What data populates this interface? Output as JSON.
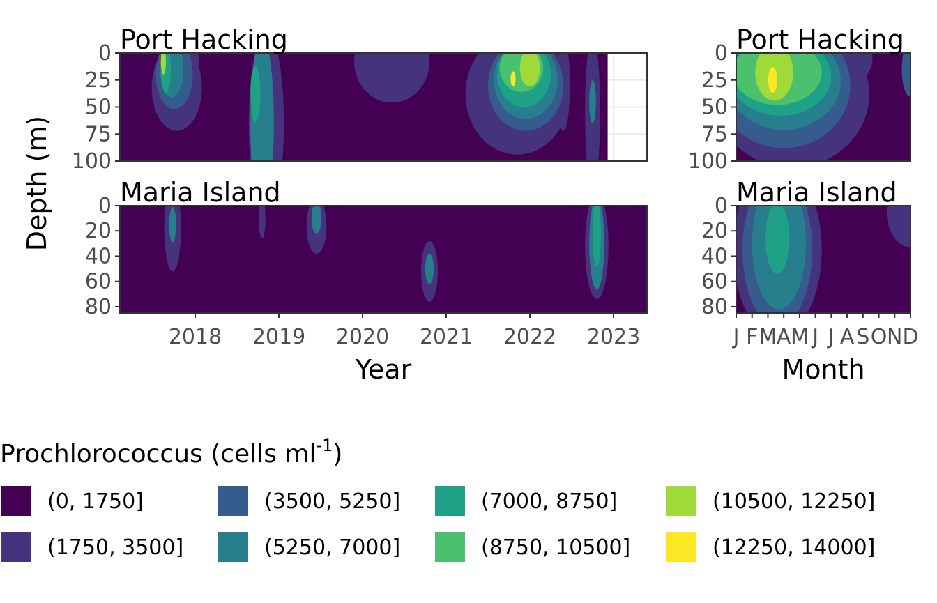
{
  "chart_data": {
    "type": "heatmap",
    "description_label": "Prochlorococcus depth contour panels",
    "ylabel": "Depth (m)",
    "legend": {
      "title": "Prochlorococcus (cells ml",
      "title_sup": "-1",
      "title_end": ")",
      "placement": "bottom",
      "bins": [
        {
          "label": "(0, 1750]",
          "color": "#440154"
        },
        {
          "label": "(1750, 3500]",
          "color": "#46337E"
        },
        {
          "label": "(3500, 5250]",
          "color": "#365C8D"
        },
        {
          "label": "(5250, 7000]",
          "color": "#277F8E"
        },
        {
          "label": "(7000, 8750]",
          "color": "#1FA187"
        },
        {
          "label": "(8750, 10500]",
          "color": "#4AC16D"
        },
        {
          "label": "(10500, 12250]",
          "color": "#9FDA3A"
        },
        {
          "label": "(12250, 14000]",
          "color": "#FDE725"
        }
      ]
    },
    "panels": [
      {
        "id": "year-port-hacking",
        "facet": "Port Hacking",
        "xlabel": "",
        "x_type": "year",
        "xlim": [
          2017.1,
          2023.4
        ],
        "ylim": [
          0,
          100
        ],
        "y_ticks": [
          "0",
          "25",
          "50",
          "75",
          "100"
        ],
        "y_tick_values": [
          0,
          25,
          50,
          75,
          100
        ],
        "x_ticks": [],
        "data_end": 2022.93,
        "blobs": [
          {
            "x": 2017.78,
            "y": 32,
            "rx": 0.3,
            "ry": 40,
            "bin": 1
          },
          {
            "x": 2017.75,
            "y": 20,
            "rx": 0.22,
            "ry": 32,
            "bin": 2
          },
          {
            "x": 2017.72,
            "y": 15,
            "rx": 0.14,
            "ry": 26,
            "bin": 3
          },
          {
            "x": 2017.65,
            "y": 15,
            "rx": 0.06,
            "ry": 22,
            "bin": 4
          },
          {
            "x": 2017.62,
            "y": 8,
            "rx": 0.03,
            "ry": 12,
            "bin": 6
          },
          {
            "x": 2018.0,
            "y": 22,
            "rx": 0.05,
            "ry": 32,
            "bin": 1
          },
          {
            "x": 2018.85,
            "y": 65,
            "rx": 0.21,
            "ry": 85,
            "bin": 1
          },
          {
            "x": 2018.8,
            "y": 65,
            "rx": 0.14,
            "ry": 80,
            "bin": 3
          },
          {
            "x": 2018.72,
            "y": 38,
            "rx": 0.06,
            "ry": 26,
            "bin": 4
          },
          {
            "x": 2020.35,
            "y": 8,
            "rx": 0.45,
            "ry": 38,
            "bin": 1
          },
          {
            "x": 2021.85,
            "y": 38,
            "rx": 0.62,
            "ry": 56,
            "bin": 1
          },
          {
            "x": 2021.95,
            "y": 30,
            "rx": 0.45,
            "ry": 42,
            "bin": 2
          },
          {
            "x": 2021.95,
            "y": 25,
            "rx": 0.38,
            "ry": 36,
            "bin": 3
          },
          {
            "x": 2021.93,
            "y": 20,
            "rx": 0.32,
            "ry": 30,
            "bin": 4
          },
          {
            "x": 2021.9,
            "y": 14,
            "rx": 0.26,
            "ry": 22,
            "bin": 5
          },
          {
            "x": 2022.0,
            "y": 14,
            "rx": 0.12,
            "ry": 17,
            "bin": 6
          },
          {
            "x": 2021.8,
            "y": 24,
            "rx": 0.03,
            "ry": 7,
            "bin": 7
          },
          {
            "x": 2022.4,
            "y": 30,
            "rx": 0.08,
            "ry": 42,
            "bin": 1
          },
          {
            "x": 2022.75,
            "y": 55,
            "rx": 0.09,
            "ry": 70,
            "bin": 1
          },
          {
            "x": 2022.75,
            "y": 45,
            "rx": 0.04,
            "ry": 20,
            "bin": 3
          }
        ]
      },
      {
        "id": "year-maria-island",
        "facet": "Maria Island",
        "xlabel": "Year",
        "x_type": "year",
        "xlim": [
          2017.1,
          2023.4
        ],
        "ylim": [
          0,
          85
        ],
        "y_ticks": [
          "0",
          "20",
          "40",
          "60",
          "80"
        ],
        "y_tick_values": [
          0,
          20,
          40,
          60,
          80
        ],
        "x_ticks": [
          "2018",
          "2019",
          "2020",
          "2021",
          "2022",
          "2023"
        ],
        "x_tick_values": [
          2018,
          2019,
          2020,
          2021,
          2022,
          2023
        ],
        "data_end": 2023.4,
        "blobs": [
          {
            "x": 2017.73,
            "y": 18,
            "rx": 0.1,
            "ry": 34,
            "bin": 1
          },
          {
            "x": 2017.73,
            "y": 15,
            "rx": 0.04,
            "ry": 14,
            "bin": 3
          },
          {
            "x": 2018.8,
            "y": 10,
            "rx": 0.04,
            "ry": 16,
            "bin": 1
          },
          {
            "x": 2019.45,
            "y": 16,
            "rx": 0.12,
            "ry": 22,
            "bin": 1
          },
          {
            "x": 2019.45,
            "y": 10,
            "rx": 0.06,
            "ry": 12,
            "bin": 3
          },
          {
            "x": 2020.8,
            "y": 52,
            "rx": 0.1,
            "ry": 24,
            "bin": 1
          },
          {
            "x": 2020.8,
            "y": 50,
            "rx": 0.05,
            "ry": 12,
            "bin": 3
          },
          {
            "x": 2022.8,
            "y": 32,
            "rx": 0.14,
            "ry": 42,
            "bin": 1
          },
          {
            "x": 2022.8,
            "y": 30,
            "rx": 0.09,
            "ry": 36,
            "bin": 3
          },
          {
            "x": 2022.8,
            "y": 22,
            "rx": 0.05,
            "ry": 26,
            "bin": 4
          }
        ]
      },
      {
        "id": "month-port-hacking",
        "facet": "Port Hacking",
        "xlabel": "",
        "x_type": "month",
        "xlim": [
          1,
          12
        ],
        "ylim": [
          0,
          100
        ],
        "y_ticks": [
          "0",
          "25",
          "50",
          "75",
          "100"
        ],
        "y_tick_values": [
          0,
          25,
          50,
          75,
          100
        ],
        "x_ticks": [],
        "data_end": 12,
        "blobs": [
          {
            "x": 4.5,
            "y": 38,
            "rx": 4.9,
            "ry": 68,
            "bin": 1
          },
          {
            "x": 4.0,
            "y": 30,
            "rx": 4.2,
            "ry": 58,
            "bin": 2
          },
          {
            "x": 4.0,
            "y": 26,
            "rx": 3.6,
            "ry": 45,
            "bin": 3
          },
          {
            "x": 3.8,
            "y": 22,
            "rx": 3.2,
            "ry": 36,
            "bin": 4
          },
          {
            "x": 3.6,
            "y": 18,
            "rx": 2.8,
            "ry": 30,
            "bin": 5
          },
          {
            "x": 3.4,
            "y": 18,
            "rx": 1.2,
            "ry": 26,
            "bin": 6
          },
          {
            "x": 3.3,
            "y": 25,
            "rx": 0.28,
            "ry": 12,
            "bin": 7
          },
          {
            "x": 8.6,
            "y": 5,
            "rx": 1.0,
            "ry": 20,
            "bin": 1
          },
          {
            "x": 11.95,
            "y": 15,
            "rx": 0.5,
            "ry": 25,
            "bin": 2
          }
        ]
      },
      {
        "id": "month-maria-island",
        "facet": "Maria Island",
        "xlabel": "Month",
        "x_type": "month",
        "xlim": [
          1,
          12
        ],
        "ylim": [
          0,
          85
        ],
        "y_ticks": [
          "0",
          "20",
          "40",
          "60",
          "80"
        ],
        "y_tick_values": [
          0,
          20,
          40,
          60,
          80
        ],
        "x_ticks": [
          "J",
          "F",
          "M",
          "A",
          "M",
          "J",
          "J",
          "A",
          "S",
          "O",
          "N",
          "D"
        ],
        "x_tick_values": [
          1,
          2,
          3,
          4,
          5,
          6,
          7,
          8,
          9,
          10,
          11,
          12
        ],
        "data_end": 12,
        "blobs": [
          {
            "x": 3.6,
            "y": 35,
            "rx": 2.8,
            "ry": 68,
            "bin": 1
          },
          {
            "x": 3.6,
            "y": 35,
            "rx": 2.2,
            "ry": 60,
            "bin": 2
          },
          {
            "x": 3.7,
            "y": 30,
            "rx": 1.7,
            "ry": 52,
            "bin": 3
          },
          {
            "x": 3.6,
            "y": 26,
            "rx": 0.75,
            "ry": 28,
            "bin": 4
          },
          {
            "x": 12.0,
            "y": 5,
            "rx": 1.5,
            "ry": 28,
            "bin": 1
          }
        ]
      }
    ]
  }
}
